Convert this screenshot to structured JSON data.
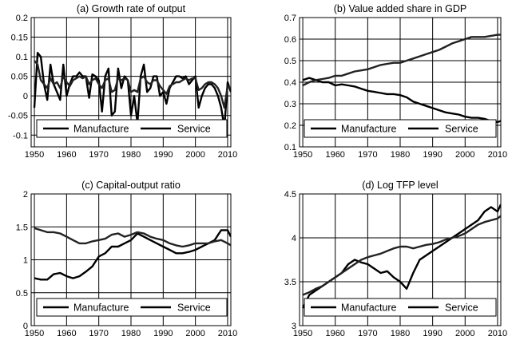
{
  "chart_data": [
    {
      "type": "line",
      "title": "(a) Growth rate of output",
      "xlabel": "",
      "ylabel": "",
      "xlim": [
        1949,
        2011
      ],
      "ylim": [
        -0.13,
        0.2
      ],
      "xticks": [
        1950,
        1960,
        1970,
        1980,
        1990,
        2000,
        2010
      ],
      "yticks": [
        -0.1,
        -0.05,
        0,
        0.05,
        0.1,
        0.15,
        0.2
      ],
      "ytick_labels": [
        "-0.1",
        "-0.05",
        "0",
        "0.05",
        "0.1",
        "0.15",
        "0.2"
      ],
      "grid": true,
      "legend": [
        "Manufacture",
        "Service"
      ],
      "series": [
        {
          "name": "Manufacture",
          "x": [
            1950,
            1951,
            1952,
            1953,
            1954,
            1955,
            1956,
            1957,
            1958,
            1959,
            1960,
            1961,
            1962,
            1963,
            1964,
            1965,
            1966,
            1967,
            1968,
            1969,
            1970,
            1971,
            1972,
            1973,
            1974,
            1975,
            1976,
            1977,
            1978,
            1979,
            1980,
            1981,
            1982,
            1983,
            1984,
            1985,
            1986,
            1987,
            1988,
            1989,
            1990,
            1991,
            1992,
            1993,
            1994,
            1995,
            1996,
            1997,
            1998,
            1999,
            2000,
            2001,
            2002,
            2003,
            2004,
            2005,
            2006,
            2007,
            2008,
            2009,
            2010,
            2011
          ],
          "values": [
            -0.03,
            0.11,
            0.1,
            0.03,
            -0.01,
            0.08,
            0.03,
            0.01,
            -0.01,
            0.08,
            0.0,
            0.03,
            0.05,
            0.05,
            0.06,
            0.05,
            0.05,
            -0.005,
            0.055,
            0.05,
            0.04,
            -0.04,
            0.05,
            0.07,
            -0.05,
            -0.04,
            0.07,
            0.02,
            0.05,
            0.04,
            -0.05,
            0.0,
            -0.07,
            0.05,
            0.08,
            0.01,
            0.02,
            0.05,
            0.05,
            0.0,
            0.01,
            -0.02,
            0.02,
            0.035,
            0.05,
            0.05,
            0.045,
            0.05,
            0.03,
            0.04,
            0.05,
            -0.03,
            0.0,
            0.02,
            0.03,
            0.03,
            0.02,
            0.0,
            -0.03,
            -0.08,
            0.035,
            0.01
          ]
        },
        {
          "name": "Service",
          "x": [
            1950,
            1951,
            1952,
            1953,
            1954,
            1955,
            1956,
            1957,
            1958,
            1959,
            1960,
            1961,
            1962,
            1963,
            1964,
            1965,
            1966,
            1967,
            1968,
            1969,
            1970,
            1971,
            1972,
            1973,
            1974,
            1975,
            1976,
            1977,
            1978,
            1979,
            1980,
            1981,
            1982,
            1983,
            1984,
            1985,
            1986,
            1987,
            1988,
            1989,
            1990,
            1991,
            1992,
            1993,
            1994,
            1995,
            1996,
            1997,
            1998,
            1999,
            2000,
            2001,
            2002,
            2003,
            2004,
            2005,
            2006,
            2007,
            2008,
            2009,
            2010,
            2011
          ],
          "values": [
            0.09,
            0.08,
            0.04,
            0.03,
            0.02,
            0.045,
            0.03,
            0.035,
            0.02,
            0.05,
            0.035,
            0.025,
            0.04,
            0.045,
            0.05,
            0.045,
            0.05,
            0.03,
            0.04,
            0.045,
            0.03,
            0.02,
            0.04,
            0.045,
            0.01,
            0.015,
            0.045,
            0.04,
            0.045,
            0.04,
            0.01,
            0.015,
            0.01,
            0.045,
            0.05,
            0.035,
            0.03,
            0.04,
            0.04,
            0.025,
            0.015,
            0.005,
            0.025,
            0.03,
            0.035,
            0.035,
            0.04,
            0.045,
            0.04,
            0.045,
            0.045,
            0.015,
            0.02,
            0.03,
            0.035,
            0.035,
            0.03,
            0.02,
            0.0,
            -0.03,
            0.025,
            0.02
          ]
        }
      ]
    },
    {
      "type": "line",
      "title": "(b) Value added share in GDP",
      "xlabel": "",
      "ylabel": "",
      "xlim": [
        1949,
        2011
      ],
      "ylim": [
        0.1,
        0.7
      ],
      "xticks": [
        1950,
        1960,
        1970,
        1980,
        1990,
        2000,
        2010
      ],
      "yticks": [
        0.1,
        0.2,
        0.3,
        0.4,
        0.5,
        0.6,
        0.7
      ],
      "ytick_labels": [
        "0.1",
        "0.2",
        "0.3",
        "0.4",
        "0.5",
        "0.6",
        "0.7"
      ],
      "grid": true,
      "legend": [
        "Manufacture",
        "Service"
      ],
      "series": [
        {
          "name": "Manufacture",
          "x": [
            1950,
            1952,
            1954,
            1956,
            1958,
            1960,
            1962,
            1964,
            1966,
            1968,
            1970,
            1972,
            1974,
            1976,
            1978,
            1980,
            1982,
            1984,
            1986,
            1988,
            1990,
            1992,
            1994,
            1996,
            1998,
            2000,
            2002,
            2004,
            2006,
            2008,
            2010,
            2011
          ],
          "values": [
            0.41,
            0.42,
            0.41,
            0.4,
            0.4,
            0.385,
            0.39,
            0.385,
            0.38,
            0.37,
            0.36,
            0.355,
            0.35,
            0.345,
            0.345,
            0.34,
            0.33,
            0.31,
            0.3,
            0.29,
            0.28,
            0.27,
            0.26,
            0.255,
            0.25,
            0.24,
            0.235,
            0.235,
            0.23,
            0.22,
            0.215,
            0.22
          ]
        },
        {
          "name": "Service",
          "x": [
            1950,
            1952,
            1954,
            1956,
            1958,
            1960,
            1962,
            1964,
            1966,
            1968,
            1970,
            1972,
            1974,
            1976,
            1978,
            1980,
            1982,
            1984,
            1986,
            1988,
            1990,
            1992,
            1994,
            1996,
            1998,
            2000,
            2002,
            2004,
            2006,
            2008,
            2010,
            2011
          ],
          "values": [
            0.385,
            0.4,
            0.41,
            0.415,
            0.42,
            0.43,
            0.43,
            0.44,
            0.45,
            0.455,
            0.46,
            0.47,
            0.48,
            0.485,
            0.49,
            0.49,
            0.5,
            0.51,
            0.52,
            0.53,
            0.54,
            0.55,
            0.565,
            0.58,
            0.59,
            0.6,
            0.61,
            0.61,
            0.61,
            0.615,
            0.62,
            0.62
          ]
        }
      ]
    },
    {
      "type": "line",
      "title": "(c) Capital-output ratio",
      "xlabel": "",
      "ylabel": "",
      "xlim": [
        1949,
        2011
      ],
      "ylim": [
        0,
        2
      ],
      "xticks": [
        1950,
        1960,
        1970,
        1980,
        1990,
        2000,
        2010
      ],
      "yticks": [
        0,
        0.5,
        1,
        1.5,
        2
      ],
      "ytick_labels": [
        "0",
        "0.5",
        "1",
        "1.5",
        "2"
      ],
      "grid": true,
      "legend": [
        "Manufacture",
        "Service"
      ],
      "series": [
        {
          "name": "Manufacture",
          "x": [
            1950,
            1952,
            1954,
            1956,
            1958,
            1960,
            1962,
            1964,
            1966,
            1968,
            1970,
            1972,
            1974,
            1976,
            1978,
            1980,
            1982,
            1984,
            1986,
            1988,
            1990,
            1992,
            1994,
            1996,
            1998,
            2000,
            2002,
            2004,
            2006,
            2008,
            2010,
            2011
          ],
          "values": [
            0.72,
            0.7,
            0.7,
            0.78,
            0.8,
            0.75,
            0.72,
            0.75,
            0.82,
            0.9,
            1.05,
            1.1,
            1.2,
            1.2,
            1.25,
            1.3,
            1.4,
            1.35,
            1.3,
            1.25,
            1.2,
            1.15,
            1.1,
            1.1,
            1.12,
            1.15,
            1.2,
            1.25,
            1.3,
            1.45,
            1.45,
            1.35
          ]
        },
        {
          "name": "Service",
          "x": [
            1950,
            1952,
            1954,
            1956,
            1958,
            1960,
            1962,
            1964,
            1966,
            1968,
            1970,
            1972,
            1974,
            1976,
            1978,
            1980,
            1982,
            1984,
            1986,
            1988,
            1990,
            1992,
            1994,
            1996,
            1998,
            2000,
            2002,
            2004,
            2006,
            2008,
            2010,
            2011
          ],
          "values": [
            1.48,
            1.45,
            1.42,
            1.42,
            1.4,
            1.35,
            1.3,
            1.25,
            1.25,
            1.28,
            1.3,
            1.32,
            1.38,
            1.4,
            1.35,
            1.38,
            1.42,
            1.4,
            1.35,
            1.32,
            1.3,
            1.25,
            1.22,
            1.2,
            1.22,
            1.25,
            1.25,
            1.25,
            1.28,
            1.3,
            1.25,
            1.22
          ]
        }
      ]
    },
    {
      "type": "line",
      "title": "(d) Log TFP level",
      "xlabel": "",
      "ylabel": "",
      "xlim": [
        1949,
        2011
      ],
      "ylim": [
        3,
        4.5
      ],
      "xticks": [
        1950,
        1960,
        1970,
        1980,
        1990,
        2000,
        2010
      ],
      "yticks": [
        3,
        3.5,
        4,
        4.5
      ],
      "ytick_labels": [
        "3",
        "3.5",
        "4",
        "4.5"
      ],
      "grid": true,
      "legend": [
        "Manufacture",
        "Service"
      ],
      "series": [
        {
          "name": "Manufacture",
          "x": [
            1950,
            1952,
            1954,
            1956,
            1958,
            1960,
            1962,
            1964,
            1966,
            1968,
            1970,
            1972,
            1974,
            1976,
            1978,
            1980,
            1982,
            1984,
            1986,
            1988,
            1990,
            1992,
            1994,
            1996,
            1998,
            2000,
            2002,
            2004,
            2006,
            2008,
            2010,
            2011
          ],
          "values": [
            3.2,
            3.35,
            3.4,
            3.45,
            3.5,
            3.55,
            3.6,
            3.7,
            3.75,
            3.72,
            3.7,
            3.65,
            3.6,
            3.62,
            3.55,
            3.5,
            3.42,
            3.6,
            3.75,
            3.8,
            3.85,
            3.9,
            3.95,
            4.0,
            4.05,
            4.1,
            4.15,
            4.2,
            4.3,
            4.35,
            4.3,
            4.38
          ]
        },
        {
          "name": "Service",
          "x": [
            1950,
            1952,
            1954,
            1956,
            1958,
            1960,
            1962,
            1964,
            1966,
            1968,
            1970,
            1972,
            1974,
            1976,
            1978,
            1980,
            1982,
            1984,
            1986,
            1988,
            1990,
            1992,
            1994,
            1996,
            1998,
            2000,
            2002,
            2004,
            2006,
            2008,
            2010,
            2011
          ],
          "values": [
            3.35,
            3.38,
            3.42,
            3.45,
            3.5,
            3.55,
            3.6,
            3.65,
            3.7,
            3.75,
            3.78,
            3.8,
            3.82,
            3.85,
            3.88,
            3.9,
            3.9,
            3.88,
            3.9,
            3.92,
            3.93,
            3.95,
            3.98,
            4.0,
            4.02,
            4.05,
            4.1,
            4.15,
            4.18,
            4.2,
            4.22,
            4.25
          ]
        }
      ]
    }
  ]
}
